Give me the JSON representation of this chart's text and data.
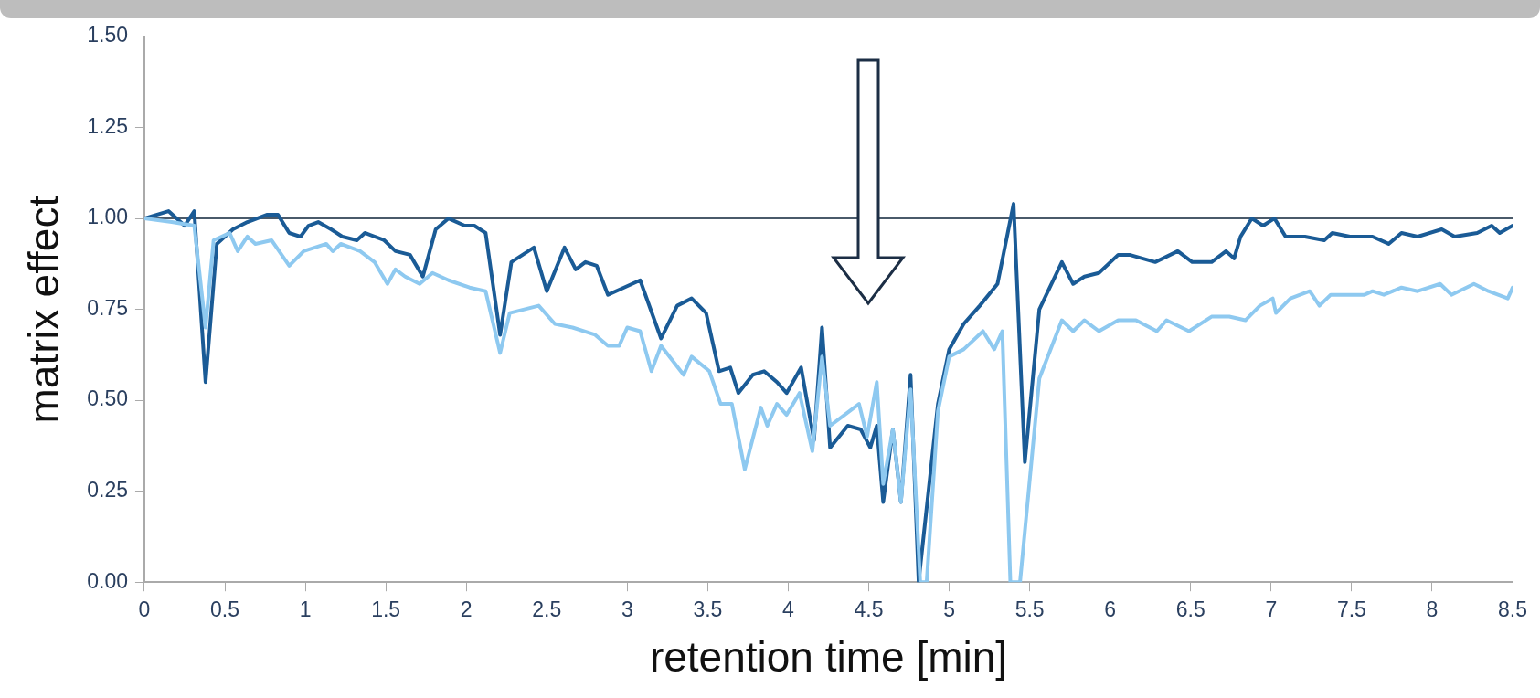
{
  "chart_data": {
    "type": "line",
    "xlabel": "retention time [min]",
    "ylabel": "matrix effect",
    "xlim": [
      0,
      8.5
    ],
    "xticks": [
      0,
      0.5,
      1,
      1.5,
      2,
      2.5,
      3,
      3.5,
      4,
      4.5,
      5,
      5.5,
      6,
      6.5,
      7,
      7.5,
      8,
      8.5
    ],
    "ylim": [
      0,
      1.5
    ],
    "yticks": [
      {
        "value": 0,
        "label": "0.00"
      },
      {
        "value": 0.25,
        "label": "0.25"
      },
      {
        "value": 0.5,
        "label": "0.50"
      },
      {
        "value": 0.75,
        "label": "0.75"
      },
      {
        "value": 1,
        "label": "1.00"
      },
      {
        "value": 1.25,
        "label": "1.25"
      },
      {
        "value": 1.5,
        "label": "1.50"
      }
    ],
    "grid": false,
    "legend": false,
    "marker": "none",
    "line_style": "solid",
    "ref_lines": [
      {
        "axis": "y",
        "value": 1,
        "label": null,
        "color": "#4a5a6a"
      }
    ],
    "series": [
      {
        "color": "#1a5b96",
        "x": [
          0,
          0.15,
          0.25,
          0.31,
          0.38,
          0.45,
          0.55,
          0.64,
          0.76,
          0.83,
          0.9,
          0.97,
          1.02,
          1.08,
          1.16,
          1.23,
          1.32,
          1.37,
          1.49,
          1.56,
          1.65,
          1.73,
          1.81,
          1.89,
          1.99,
          2.05,
          2.12,
          2.21,
          2.28,
          2.42,
          2.5,
          2.61,
          2.68,
          2.74,
          2.81,
          2.88,
          2.98,
          3.08,
          3.21,
          3.31,
          3.4,
          3.49,
          3.57,
          3.64,
          3.69,
          3.78,
          3.85,
          3.93,
          3.99,
          4.08,
          4.16,
          4.21,
          4.26,
          4.37,
          4.45,
          4.51,
          4.55,
          4.59,
          4.65,
          4.7,
          4.76,
          4.81,
          4.93,
          5,
          5.09,
          5.19,
          5.3,
          5.4,
          5.47,
          5.56,
          5.7,
          5.77,
          5.84,
          5.93,
          6.05,
          6.12,
          6.28,
          6.42,
          6.51,
          6.63,
          6.72,
          6.77,
          6.81,
          6.88,
          6.95,
          7.02,
          7.09,
          7.21,
          7.33,
          7.38,
          7.49,
          7.63,
          7.73,
          7.81,
          7.91,
          8.06,
          8.14,
          8.28,
          8.37,
          8.42,
          8.5
        ],
        "values": [
          1,
          1.02,
          0.98,
          1.02,
          0.55,
          0.93,
          0.97,
          0.99,
          1.01,
          1.01,
          0.96,
          0.95,
          0.98,
          0.99,
          0.97,
          0.95,
          0.94,
          0.96,
          0.94,
          0.91,
          0.9,
          0.84,
          0.97,
          1,
          0.98,
          0.98,
          0.96,
          0.68,
          0.88,
          0.92,
          0.8,
          0.92,
          0.86,
          0.88,
          0.87,
          0.79,
          0.81,
          0.83,
          0.67,
          0.76,
          0.78,
          0.74,
          0.58,
          0.59,
          0.52,
          0.57,
          0.58,
          0.55,
          0.52,
          0.59,
          0.39,
          0.7,
          0.37,
          0.43,
          0.42,
          0.37,
          0.43,
          0.22,
          0.42,
          0.22,
          0.57,
          0,
          0.49,
          0.64,
          0.71,
          0.76,
          0.82,
          1.04,
          0.33,
          0.75,
          0.88,
          0.82,
          0.84,
          0.85,
          0.9,
          0.9,
          0.88,
          0.91,
          0.88,
          0.88,
          0.91,
          0.89,
          0.95,
          1,
          0.98,
          1,
          0.95,
          0.95,
          0.94,
          0.96,
          0.95,
          0.95,
          0.93,
          0.96,
          0.95,
          0.97,
          0.95,
          0.96,
          0.98,
          0.96,
          0.98
        ]
      },
      {
        "color": "#8ec9f0",
        "x": [
          0,
          0.17,
          0.31,
          0.38,
          0.43,
          0.53,
          0.58,
          0.64,
          0.69,
          0.79,
          0.9,
          0.99,
          1.13,
          1.17,
          1.22,
          1.34,
          1.43,
          1.51,
          1.56,
          1.62,
          1.71,
          1.79,
          1.89,
          2.02,
          2.12,
          2.21,
          2.27,
          2.45,
          2.55,
          2.66,
          2.8,
          2.88,
          2.95,
          3,
          3.08,
          3.15,
          3.21,
          3.35,
          3.4,
          3.51,
          3.58,
          3.65,
          3.73,
          3.83,
          3.87,
          3.93,
          3.99,
          4.07,
          4.15,
          4.21,
          4.26,
          4.35,
          4.44,
          4.49,
          4.55,
          4.59,
          4.65,
          4.7,
          4.76,
          4.82,
          4.86,
          4.93,
          5,
          5.09,
          5.21,
          5.28,
          5.33,
          5.38,
          5.44,
          5.56,
          5.7,
          5.77,
          5.84,
          5.93,
          6.05,
          6.16,
          6.29,
          6.35,
          6.49,
          6.63,
          6.74,
          6.84,
          6.93,
          7.01,
          7.03,
          7.12,
          7.24,
          7.3,
          7.37,
          7.58,
          7.63,
          7.7,
          7.81,
          7.91,
          8.05,
          8.12,
          8.26,
          8.35,
          8.47,
          8.5
        ],
        "values": [
          1,
          0.99,
          0.98,
          0.7,
          0.94,
          0.96,
          0.91,
          0.95,
          0.93,
          0.94,
          0.87,
          0.91,
          0.93,
          0.91,
          0.93,
          0.91,
          0.88,
          0.82,
          0.86,
          0.84,
          0.82,
          0.85,
          0.83,
          0.81,
          0.8,
          0.63,
          0.74,
          0.76,
          0.71,
          0.7,
          0.68,
          0.65,
          0.65,
          0.7,
          0.69,
          0.58,
          0.65,
          0.57,
          0.62,
          0.58,
          0.49,
          0.49,
          0.31,
          0.48,
          0.43,
          0.49,
          0.46,
          0.52,
          0.36,
          0.62,
          0.43,
          0.46,
          0.49,
          0.4,
          0.55,
          0.27,
          0.42,
          0.22,
          0.53,
          0,
          0,
          0.47,
          0.62,
          0.64,
          0.69,
          0.64,
          0.69,
          0,
          0,
          0.56,
          0.72,
          0.69,
          0.72,
          0.69,
          0.72,
          0.72,
          0.69,
          0.72,
          0.69,
          0.73,
          0.73,
          0.72,
          0.76,
          0.78,
          0.74,
          0.78,
          0.8,
          0.76,
          0.79,
          0.79,
          0.8,
          0.79,
          0.81,
          0.8,
          0.82,
          0.79,
          0.82,
          0.8,
          0.78,
          0.81
        ]
      }
    ]
  }
}
